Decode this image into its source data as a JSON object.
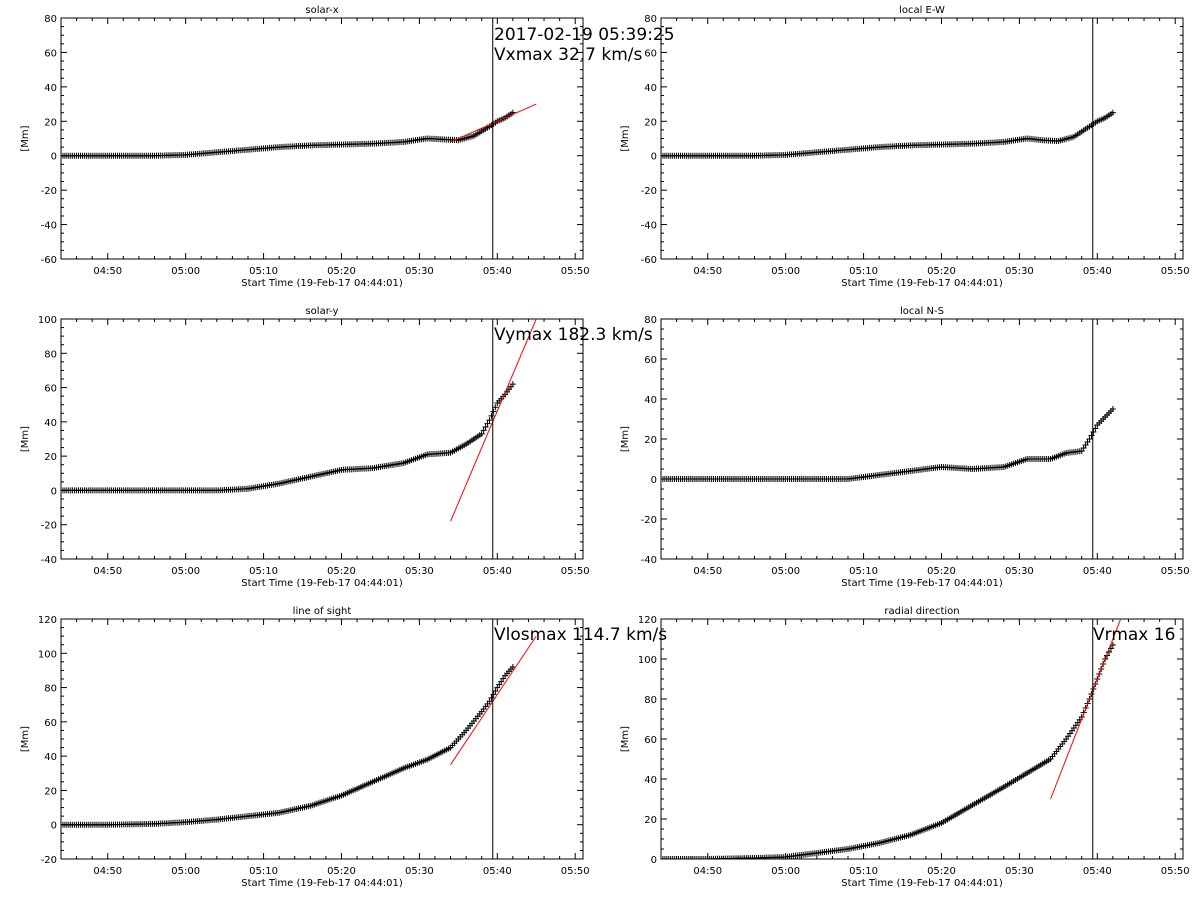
{
  "chart_data": [
    {
      "type": "scatter",
      "title": "solar-x",
      "xlabel": "Start Time (19-Feb-17 04:44:01)",
      "ylabel": "[Mm]",
      "xlim": [
        "04:44",
        "05:51"
      ],
      "ylim": [
        -60,
        80
      ],
      "xticks": [
        "04:50",
        "05:00",
        "05:10",
        "05:20",
        "05:30",
        "05:40",
        "05:50"
      ],
      "yticks": [
        -60,
        -40,
        -20,
        0,
        20,
        40,
        60,
        80
      ],
      "vline": "05:39:25",
      "annotations": [
        "2017-02-19 05:39:25",
        "Vxmax   32.7 km/s"
      ],
      "series": [
        {
          "marker": "plus",
          "color": "#000000",
          "x": [
            "04:44",
            "04:50",
            "04:56",
            "05:00",
            "05:04",
            "05:08",
            "05:12",
            "05:16",
            "05:20",
            "05:24",
            "05:28",
            "05:31",
            "05:33",
            "05:35",
            "05:37",
            "05:39",
            "05:40",
            "05:41",
            "05:42"
          ],
          "y": [
            0,
            0,
            0,
            0.5,
            2,
            3.5,
            5,
            6,
            6.5,
            7,
            8,
            10,
            9.5,
            9,
            11.5,
            17,
            20,
            22,
            25
          ]
        },
        {
          "line": "fit",
          "color": "#ff0000",
          "x": [
            "05:34",
            "05:45"
          ],
          "y": [
            8,
            30
          ]
        }
      ]
    },
    {
      "type": "scatter",
      "title": "local E-W",
      "xlabel": "Start Time (19-Feb-17 04:44:01)",
      "ylabel": "[Mm]",
      "xlim": [
        "04:44",
        "05:51"
      ],
      "ylim": [
        -60,
        80
      ],
      "xticks": [
        "04:50",
        "05:00",
        "05:10",
        "05:20",
        "05:30",
        "05:40",
        "05:50"
      ],
      "yticks": [
        -60,
        -40,
        -20,
        0,
        20,
        40,
        60,
        80
      ],
      "vline": "05:39:25",
      "series": [
        {
          "marker": "plus",
          "color": "#000000",
          "x": [
            "04:44",
            "04:50",
            "04:56",
            "05:00",
            "05:04",
            "05:08",
            "05:12",
            "05:16",
            "05:20",
            "05:24",
            "05:28",
            "05:31",
            "05:33",
            "05:35",
            "05:37",
            "05:39",
            "05:40",
            "05:41",
            "05:42"
          ],
          "y": [
            0,
            0,
            0,
            0.5,
            2,
            3.5,
            5,
            6,
            6.5,
            7,
            8,
            10,
            9,
            8.5,
            11,
            17,
            20,
            22,
            25
          ]
        }
      ]
    },
    {
      "type": "scatter",
      "title": "solar-y",
      "xlabel": "Start Time (19-Feb-17 04:44:01)",
      "ylabel": "[Mm]",
      "xlim": [
        "04:44",
        "05:51"
      ],
      "ylim": [
        -40,
        100
      ],
      "xticks": [
        "04:50",
        "05:00",
        "05:10",
        "05:20",
        "05:30",
        "05:40",
        "05:50"
      ],
      "yticks": [
        -40,
        -20,
        0,
        20,
        40,
        60,
        80,
        100
      ],
      "vline": "05:39:25",
      "annotations": [
        "Vymax   182.3 km/s"
      ],
      "series": [
        {
          "marker": "plus",
          "color": "#000000",
          "x": [
            "04:44",
            "04:50",
            "04:56",
            "05:00",
            "05:04",
            "05:08",
            "05:12",
            "05:16",
            "05:20",
            "05:24",
            "05:28",
            "05:31",
            "05:34",
            "05:36",
            "05:38",
            "05:39",
            "05:40",
            "05:41",
            "05:42"
          ],
          "y": [
            0,
            0,
            0,
            0,
            0,
            1,
            4,
            8,
            12,
            13,
            16,
            21,
            22,
            27,
            33,
            41,
            51,
            56,
            62
          ]
        },
        {
          "line": "fit",
          "color": "#ff0000",
          "x": [
            "05:34",
            "05:45"
          ],
          "y": [
            -18,
            100
          ]
        }
      ]
    },
    {
      "type": "scatter",
      "title": "local N-S",
      "xlabel": "Start Time (19-Feb-17 04:44:01)",
      "ylabel": "[Mm]",
      "xlim": [
        "04:44",
        "05:51"
      ],
      "ylim": [
        -40,
        80
      ],
      "xticks": [
        "04:50",
        "05:00",
        "05:10",
        "05:20",
        "05:30",
        "05:40",
        "05:50"
      ],
      "yticks": [
        -40,
        -20,
        0,
        20,
        40,
        60,
        80
      ],
      "vline": "05:39:25",
      "series": [
        {
          "marker": "plus",
          "color": "#000000",
          "x": [
            "04:44",
            "04:50",
            "04:56",
            "05:00",
            "05:04",
            "05:08",
            "05:12",
            "05:16",
            "05:20",
            "05:24",
            "05:28",
            "05:31",
            "05:34",
            "05:36",
            "05:38",
            "05:39",
            "05:40",
            "05:41",
            "05:42"
          ],
          "y": [
            0,
            0,
            0,
            0,
            0,
            0,
            2,
            4,
            6,
            5,
            6,
            10,
            10,
            13,
            14,
            20,
            27,
            31,
            35
          ]
        }
      ]
    },
    {
      "type": "scatter",
      "title": "line of sight",
      "xlabel": "Start Time (19-Feb-17 04:44:01)",
      "ylabel": "[Mm]",
      "xlim": [
        "04:44",
        "05:51"
      ],
      "ylim": [
        -20,
        120
      ],
      "xticks": [
        "04:50",
        "05:00",
        "05:10",
        "05:20",
        "05:30",
        "05:40",
        "05:50"
      ],
      "yticks": [
        -20,
        0,
        20,
        40,
        60,
        80,
        100,
        120
      ],
      "vline": "05:39:25",
      "annotations": [
        "Vlosmax   114.7 km/s"
      ],
      "series": [
        {
          "marker": "plus",
          "color": "#000000",
          "x": [
            "04:44",
            "04:50",
            "04:56",
            "05:00",
            "05:04",
            "05:08",
            "05:12",
            "05:16",
            "05:20",
            "05:24",
            "05:28",
            "05:31",
            "05:34",
            "05:36",
            "05:38",
            "05:39",
            "05:40",
            "05:41",
            "05:42"
          ],
          "y": [
            0,
            0,
            0.5,
            1.5,
            3,
            5,
            7,
            11,
            17,
            25,
            33,
            38,
            45,
            55,
            66,
            72,
            80,
            87,
            92
          ]
        },
        {
          "line": "fit",
          "color": "#ff0000",
          "x": [
            "05:34",
            "05:45"
          ],
          "y": [
            35,
            110
          ]
        }
      ]
    },
    {
      "type": "scatter",
      "title": "radial direction",
      "xlabel": "Start Time (19-Feb-17 04:44:01)",
      "ylabel": "[Mm]",
      "xlim": [
        "04:44",
        "05:51"
      ],
      "ylim": [
        0,
        120
      ],
      "xticks": [
        "04:50",
        "05:00",
        "05:10",
        "05:20",
        "05:30",
        "05:40",
        "05:50"
      ],
      "yticks": [
        0,
        20,
        40,
        60,
        80,
        100,
        120
      ],
      "vline": "05:39:25",
      "annotations": [
        "Vrmax   16"
      ],
      "series": [
        {
          "marker": "plus",
          "color": "#000000",
          "x": [
            "04:44",
            "04:50",
            "04:56",
            "05:00",
            "05:04",
            "05:08",
            "05:12",
            "05:16",
            "05:20",
            "05:24",
            "05:28",
            "05:31",
            "05:34",
            "05:36",
            "05:38",
            "05:39",
            "05:40",
            "05:41",
            "05:42"
          ],
          "y": [
            0,
            0,
            0.5,
            1,
            3,
            5,
            8,
            12,
            18,
            27,
            36,
            43,
            50,
            60,
            71,
            80,
            90,
            100,
            107
          ]
        },
        {
          "line": "fit",
          "color": "#ff0000",
          "x": [
            "05:34",
            "05:43"
          ],
          "y": [
            30,
            120
          ]
        }
      ]
    }
  ]
}
